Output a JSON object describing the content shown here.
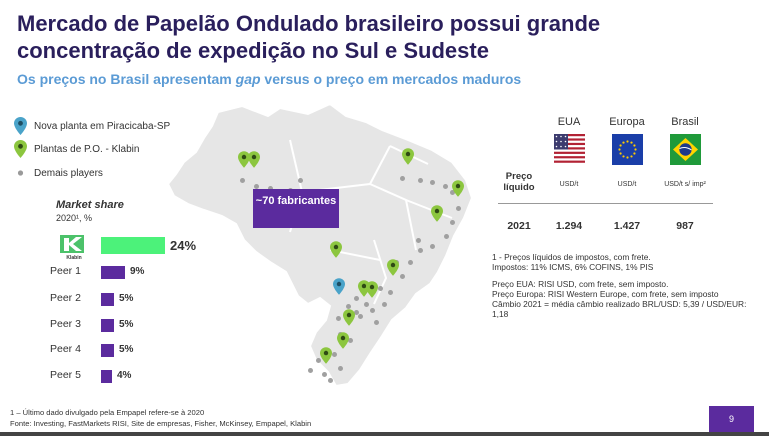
{
  "header": {
    "title": "Mercado de Papelão Ondulado brasileiro possui grande concentração de expedição no Sul e Sudeste",
    "subtitle_pre": "Os preços no Brasil apresentam ",
    "subtitle_em": "gap",
    "subtitle_post": " versus o preço em mercados maduros"
  },
  "legend": {
    "items": [
      {
        "label": "Nova planta em Piracicaba-SP",
        "icon": "blue-pin-icon"
      },
      {
        "label": "Plantas de P.O. - Klabin",
        "icon": "green-pin-icon"
      },
      {
        "label": "Demais players",
        "icon": "gray-dot-icon"
      }
    ]
  },
  "market_share": {
    "title": "Market share",
    "subtitle": "2020¹, %",
    "logo_text": "Klabin",
    "rows": [
      {
        "label": "",
        "value": 24,
        "display": "24%",
        "color": "#4cf27a"
      },
      {
        "label": "Peer 1",
        "value": 9,
        "display": "9%",
        "color": "#5b2b9e"
      },
      {
        "label": "Peer 2",
        "value": 5,
        "display": "5%",
        "color": "#5b2b9e"
      },
      {
        "label": "Peer 3",
        "value": 5,
        "display": "5%",
        "color": "#5b2b9e"
      },
      {
        "label": "Peer 4",
        "value": 5,
        "display": "5%",
        "color": "#5b2b9e"
      },
      {
        "label": "Peer 5",
        "value": 4,
        "display": "4%",
        "color": "#5b2b9e"
      }
    ]
  },
  "map": {
    "callout": "~70 fabricantes"
  },
  "prices": {
    "columns": [
      {
        "name": "EUA",
        "unit": "USD/t",
        "value": "1.294",
        "flag": "usa-flag-icon"
      },
      {
        "name": "Europa",
        "unit": "USD/t",
        "value": "1.427",
        "flag": "eu-flag-icon"
      },
      {
        "name": "Brasil",
        "unit": "USD/t s/ imp²",
        "value": "987",
        "flag": "brazil-flag-icon"
      }
    ],
    "row_label_line1": "Preço",
    "row_label_line2": "líquido",
    "year": "2021"
  },
  "notes": [
    "1 - Preços líquidos de impostos, com frete.",
    "Impostos: 11% ICMS, 6% COFINS, 1% PIS",
    "Preço EUA: RISI USD, com frete, sem imposto.",
    "Preço Europa: RISI Western Europe, com frete, sem imposto",
    "Câmbio 2021 = média câmbio realizado BRL/USD: 5,39 / USD/EUR: 1,18"
  ],
  "footer": {
    "line1": "1 – Último dado divulgado pela Empapel refere-se à 2020",
    "line2": "Fonte: Investing, FastMarkets RISI, Site de empresas, Fisher, McKinsey, Empapel, Klabin",
    "page": "9"
  },
  "colors": {
    "title": "#2a1f5c",
    "subtitle": "#5b9bd5",
    "accent_purple": "#5b2b9e",
    "klabin_green": "#4cf27a",
    "pin_green": "#8cc63f",
    "pin_blue": "#4aa3c9"
  }
}
